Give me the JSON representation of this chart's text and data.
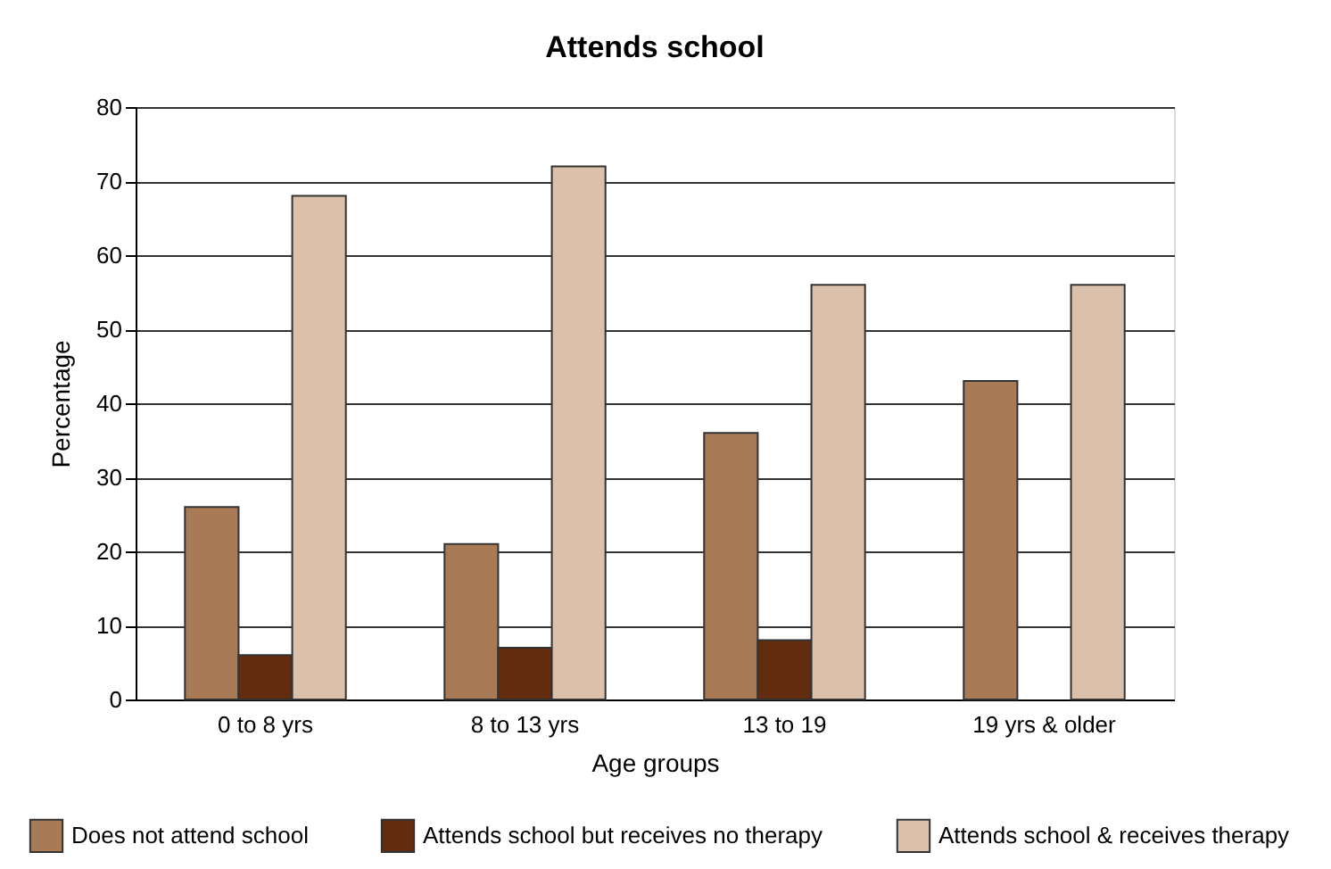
{
  "chart_data": {
    "type": "bar",
    "title": "Attends school",
    "xlabel": "Age groups",
    "ylabel": "Percentage",
    "categories": [
      "0 to 8 yrs",
      "8 to 13 yrs",
      "13 to 19",
      "19 yrs & older"
    ],
    "series": [
      {
        "name": "Does not attend school",
        "color": "#a97a56",
        "values": [
          26,
          21,
          36,
          43
        ]
      },
      {
        "name": "Attends school but receives no therapy",
        "color": "#632c0e",
        "values": [
          6,
          7,
          8,
          null
        ]
      },
      {
        "name": "Attends school & receives therapy",
        "color": "#dbc0ab",
        "values": [
          68,
          72,
          56,
          56
        ]
      }
    ],
    "ylim": [
      0,
      80
    ],
    "yticks": [
      0,
      10,
      20,
      30,
      40,
      50,
      60,
      70,
      80
    ],
    "grid": "y",
    "legend": "bottom"
  }
}
